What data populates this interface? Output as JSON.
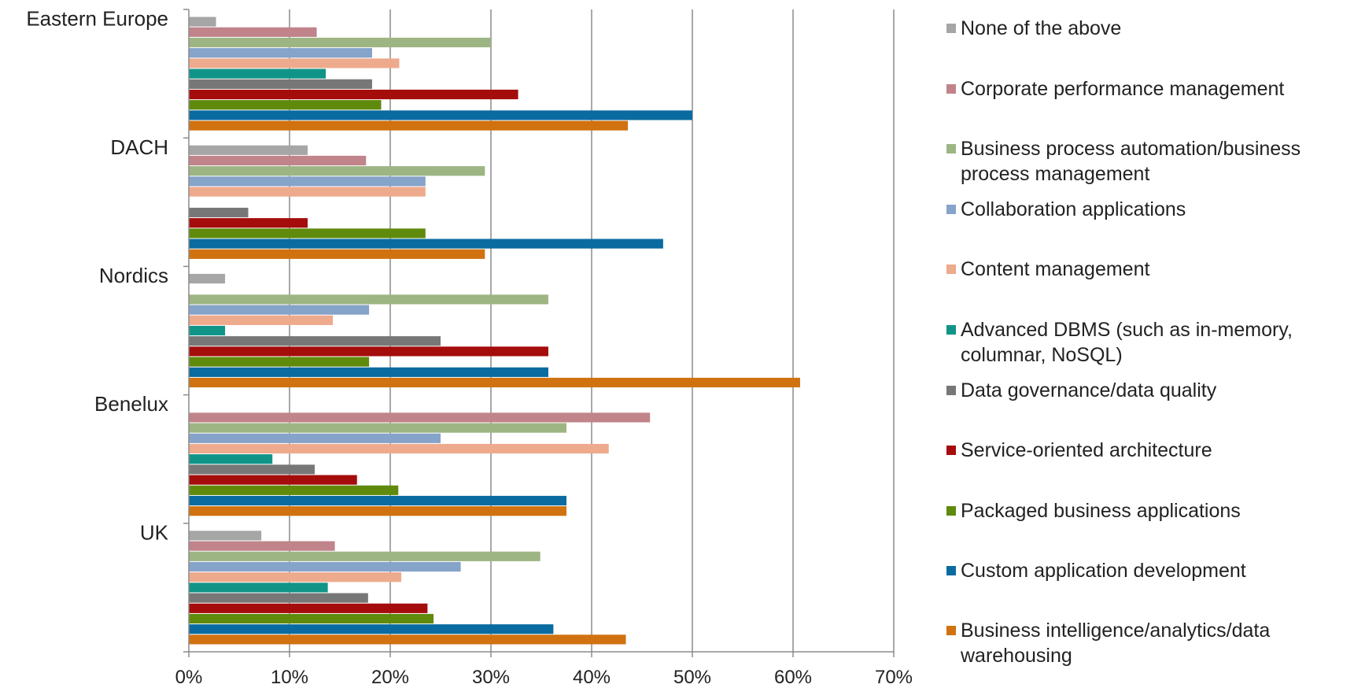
{
  "chart_data": {
    "type": "bar",
    "orientation": "horizontal",
    "categories": [
      "Eastern Europe",
      "DACH",
      "Nordics",
      "Benelux",
      "UK"
    ],
    "xlim": [
      0,
      70
    ],
    "xticks": [
      "0%",
      "10%",
      "20%",
      "30%",
      "40%",
      "50%",
      "60%",
      "70%"
    ],
    "grid": true,
    "legend_position": "right",
    "series": [
      {
        "name": "None of the above",
        "color": "#a6a6a6",
        "values": [
          2.7,
          11.8,
          3.6,
          0,
          7.2
        ]
      },
      {
        "name": "Corporate performance management",
        "color": "#c0848a",
        "values": [
          12.7,
          17.6,
          0,
          45.8,
          14.5
        ]
      },
      {
        "name": "Business process automation/business process management",
        "color": "#9db583",
        "values": [
          30.0,
          29.4,
          35.7,
          37.5,
          34.9
        ]
      },
      {
        "name": "Collaboration applications",
        "color": "#86a3c9",
        "values": [
          18.2,
          23.5,
          17.9,
          25.0,
          27.0
        ]
      },
      {
        "name": "Content management",
        "color": "#eeaa8c",
        "values": [
          20.9,
          23.5,
          14.3,
          41.7,
          21.1
        ]
      },
      {
        "name": "Advanced DBMS (such as in-memory, columnar, NoSQL)",
        "color": "#109488",
        "values": [
          13.6,
          0,
          3.6,
          8.3,
          13.8
        ]
      },
      {
        "name": "Data governance/data quality",
        "color": "#777777",
        "values": [
          18.2,
          5.9,
          25.0,
          12.5,
          17.8
        ]
      },
      {
        "name": "Service-oriented architecture",
        "color": "#a50c0c",
        "values": [
          32.7,
          11.8,
          35.7,
          16.7,
          23.7
        ]
      },
      {
        "name": "Packaged business applications",
        "color": "#5f8a0c",
        "values": [
          19.1,
          23.5,
          17.9,
          20.8,
          24.3
        ]
      },
      {
        "name": "Custom application development",
        "color": "#0a6ba0",
        "values": [
          50.0,
          47.1,
          35.7,
          37.5,
          36.2
        ]
      },
      {
        "name": "Business intelligence/analytics/data warehousing",
        "color": "#d07210",
        "values": [
          43.6,
          29.4,
          60.7,
          37.5,
          43.4
        ]
      }
    ]
  }
}
